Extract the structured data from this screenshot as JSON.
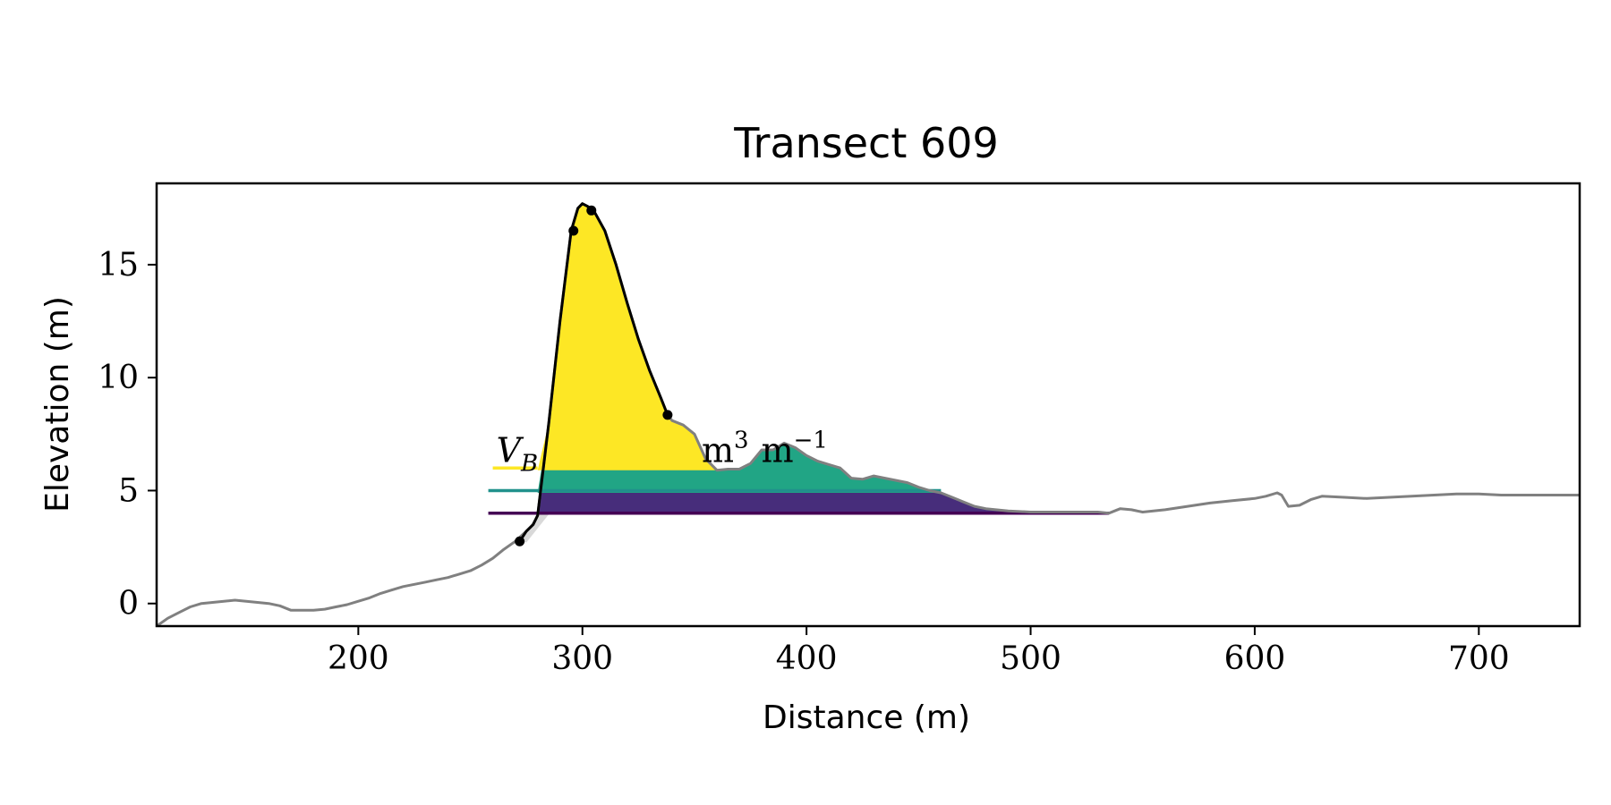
{
  "chart_data": {
    "type": "area",
    "title": "Transect 609",
    "xlabel": "Distance (m)",
    "ylabel": "Elevation (m)",
    "xlim": [
      110,
      745
    ],
    "ylim": [
      -1,
      18.6
    ],
    "xticks": [
      200,
      300,
      400,
      500,
      600,
      700
    ],
    "yticks": [
      0,
      5,
      10,
      15
    ],
    "grid": false,
    "colors": {
      "profile": "#808080",
      "dune": "#000000",
      "shadow": "#d9d9d9",
      "fill_top": "#fde725",
      "fill_mid": "#21a585",
      "fill_low": "#472d7b",
      "level_top": "#fde725",
      "level_mid": "#21918c",
      "level_low": "#440154"
    },
    "profile": {
      "x": [
        110,
        115,
        120,
        125,
        130,
        135,
        140,
        145,
        150,
        155,
        160,
        165,
        170,
        175,
        180,
        185,
        190,
        195,
        200,
        205,
        210,
        215,
        220,
        225,
        230,
        235,
        240,
        245,
        250,
        255,
        260,
        265,
        270,
        275,
        278,
        280,
        285,
        290,
        295,
        298,
        300,
        302,
        305,
        310,
        315,
        320,
        325,
        330,
        335,
        338,
        340,
        345,
        350,
        355,
        360,
        365,
        370,
        375,
        380,
        385,
        390,
        395,
        400,
        405,
        410,
        415,
        420,
        425,
        430,
        435,
        440,
        445,
        450,
        455,
        460,
        465,
        470,
        475,
        480,
        490,
        500,
        510,
        520,
        530,
        535,
        540,
        545,
        550,
        560,
        570,
        580,
        590,
        600,
        605,
        610,
        612,
        615,
        620,
        625,
        630,
        640,
        650,
        660,
        670,
        680,
        690,
        700,
        710,
        720,
        730,
        745
      ],
      "y": [
        -1.0,
        -0.65,
        -0.4,
        -0.15,
        0.0,
        0.05,
        0.1,
        0.15,
        0.1,
        0.05,
        0.0,
        -0.1,
        -0.3,
        -0.3,
        -0.3,
        -0.25,
        -0.15,
        -0.05,
        0.1,
        0.25,
        0.45,
        0.6,
        0.75,
        0.85,
        0.95,
        1.05,
        1.15,
        1.3,
        1.45,
        1.7,
        2.0,
        2.4,
        2.75,
        3.2,
        3.5,
        3.9,
        8.0,
        12.5,
        16.5,
        17.5,
        17.7,
        17.6,
        17.4,
        16.5,
        15.0,
        13.3,
        11.7,
        10.3,
        9.1,
        8.35,
        8.1,
        7.9,
        7.5,
        6.4,
        5.9,
        5.95,
        5.95,
        6.2,
        6.8,
        6.8,
        7.1,
        6.9,
        6.55,
        6.3,
        6.15,
        6.0,
        5.55,
        5.5,
        5.65,
        5.55,
        5.45,
        5.35,
        5.15,
        5.0,
        4.9,
        4.7,
        4.5,
        4.3,
        4.2,
        4.1,
        4.05,
        4.05,
        4.05,
        4.05,
        4.0,
        4.2,
        4.15,
        4.05,
        4.15,
        4.3,
        4.45,
        4.55,
        4.65,
        4.75,
        4.9,
        4.8,
        4.3,
        4.35,
        4.6,
        4.75,
        4.7,
        4.65,
        4.7,
        4.75,
        4.8,
        4.85,
        4.85,
        4.8,
        4.8,
        4.8,
        4.8
      ]
    },
    "dune_profile": {
      "x": [
        272,
        275,
        278,
        280,
        285,
        290,
        295,
        298,
        300,
        302,
        305,
        310,
        315,
        320,
        325,
        330,
        335,
        338
      ],
      "y": [
        2.75,
        3.2,
        3.5,
        3.9,
        8.0,
        12.5,
        16.5,
        17.5,
        17.7,
        17.6,
        17.4,
        16.5,
        15.0,
        13.3,
        11.7,
        10.3,
        9.1,
        8.35
      ]
    },
    "key_points": [
      {
        "x": 272,
        "y": 2.75
      },
      {
        "x": 296,
        "y": 16.5
      },
      {
        "x": 304,
        "y": 17.4
      },
      {
        "x": 338,
        "y": 8.35
      }
    ],
    "levels": [
      {
        "name": "low",
        "y": 4.0,
        "x_start": 258,
        "x_end": 535
      },
      {
        "name": "mid",
        "y": 5.0,
        "x_start": 258,
        "x_end": 460
      },
      {
        "name": "top",
        "y": 6.0,
        "x_start": 260,
        "x_end": 280
      }
    ],
    "fills": [
      {
        "name": "top",
        "y_low": 5.9,
        "x_start": 280,
        "x_end": 360
      },
      {
        "name": "mid",
        "y_low": 4.9,
        "x_start": 280,
        "x_end": 462
      },
      {
        "name": "low",
        "y_low": 3.95,
        "x_start": 280,
        "x_end": 535
      }
    ],
    "annotation": {
      "text": "V",
      "subscript": "B",
      "partial": "m",
      "exp1": "3",
      "unit2": "m",
      "exp2": "−1",
      "x": 260,
      "y": 6.5
    }
  }
}
